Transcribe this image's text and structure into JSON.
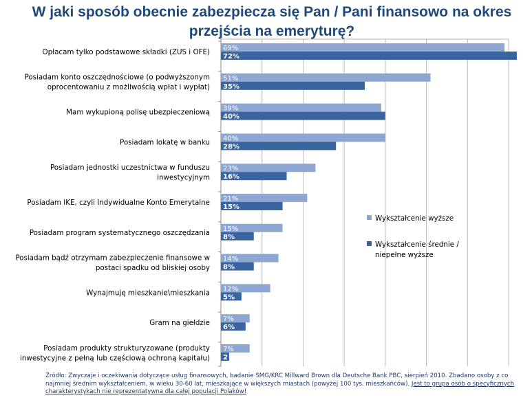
{
  "chart_data": {
    "type": "bar",
    "orientation": "horizontal",
    "title": "W jaki sposób obecnie zabezpiecza się Pan / Pani finansowo na okres przejścia na emeryturę?",
    "categories": [
      "Opłacam tylko podstawowe składki (ZUS i OFE)",
      "Posiadam konto oszczędnościowe (o podwyższonym oprocentowaniu z możliwością wpłat i wypłat)",
      "Mam wykupioną polisę ubezpieczeniową",
      "Posiadam lokatę w banku",
      "Posiadam jednostki uczestnictwa w funduszu inwestycyjnym",
      "Posiadam IKE, czyli Indywidualne Konto Emerytalne",
      "Posiadam program systematycznego oszczędzania",
      "Posiadam bądź otrzymam zabezpieczenie finansowe w postaci spadku od bliskiej osoby",
      "Wynajmuję mieszkanie\\mieszkania",
      "Gram na giełdzie",
      "Posiadam produkty strukturyzowane (produkty inwestycyjne z pełną lub częściową ochroną kapitału)"
    ],
    "category_lines": [
      [
        "Opłacam tylko podstawowe składki (ZUS i OFE)"
      ],
      [
        "Posiadam konto oszczędnościowe (o podwyższonym",
        "oprocentowaniu z możliwością wpłat i wypłat)"
      ],
      [
        "Mam wykupioną polisę ubezpieczeniową"
      ],
      [
        "Posiadam lokatę w banku"
      ],
      [
        "Posiadam jednostki uczestnictwa w funduszu",
        "inwestycyjnym"
      ],
      [
        "Posiadam IKE, czyli Indywidualne Konto Emerytalne"
      ],
      [
        "Posiadam program systematycznego oszczędzania"
      ],
      [
        "Posiadam bądź otrzymam zabezpieczenie finansowe w",
        "postaci spadku od bliskiej osoby"
      ],
      [
        "Wynajmuję mieszkanie\\mieszkania"
      ],
      [
        "Gram na giełdzie"
      ],
      [
        "Posiadam produkty strukturyzowane (produkty",
        "inwestycyjne z pełną lub częściową ochroną kapitału)"
      ]
    ],
    "series": [
      {
        "name": "Wykształcenie wyższe",
        "color": "#8ea6d2",
        "values": [
          69,
          51,
          39,
          40,
          23,
          21,
          15,
          14,
          12,
          7,
          7
        ],
        "labels": [
          "69%",
          "51%",
          "39%",
          "40%",
          "23%",
          "21%",
          "15%",
          "14%",
          "12%",
          "7%",
          "7%"
        ]
      },
      {
        "name": "Wykształcenie średnie / niepełne wyższe",
        "color": "#3a64a0",
        "values": [
          72,
          35,
          40,
          28,
          16,
          15,
          8,
          8,
          5,
          6,
          2
        ],
        "labels": [
          "72%",
          "35%",
          "40%",
          "28%",
          "16%",
          "15%",
          "8%",
          "8%",
          "5%",
          "6%",
          "2"
        ]
      }
    ],
    "legend_lines": [
      [
        "Wykształcenie wyższe"
      ],
      [
        "Wykształcenie średnie /",
        "niepełne wyższe"
      ]
    ],
    "xlim": [
      0,
      70
    ],
    "grid": true,
    "legend_position": "right"
  },
  "source": {
    "text": "Źródło: Zwyczaje i oczekiwania dotyczące usług finansowych, badanie SMG/KRC Millward Brown dla Deutsche Bank PBC, sierpień 2010. Zbadano osoby z co najmniej średnim wykształceniem, w wieku 30-60 lat, mieszkające w większych miastach (powyżej 100 tys. mieszkańców).",
    "underlined": "Jest to grupa osób o specyficznych charakterystykach nie reprezentatywna dla całej populacji Polaków!"
  }
}
